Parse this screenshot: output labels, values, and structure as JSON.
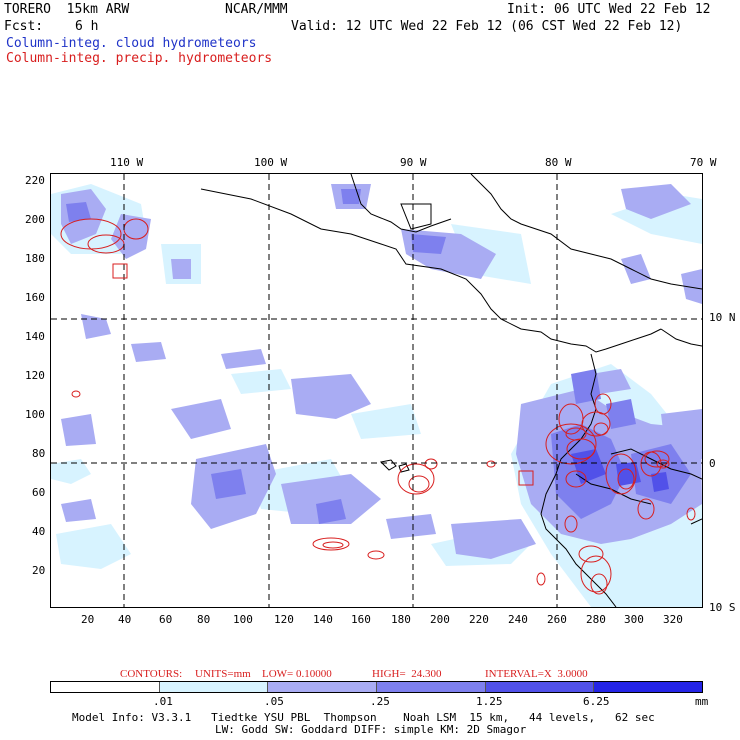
{
  "header": {
    "model_name": "TORERO  15km ARW",
    "org": "NCAR/MMM",
    "init": "Init: 06 UTC Wed 22 Feb 12",
    "fcst_label": "Fcst:",
    "fcst_value": "6 h",
    "valid": "Valid: 12 UTC Wed 22 Feb 12 (06 CST Wed 22 Feb 12)",
    "field_blue": "Column-integ. cloud hydrometeors",
    "field_red": "Column-integ. precip. hydrometeors"
  },
  "map": {
    "top_lon_labels": [
      "110 W",
      "100 W",
      "90 W",
      "80 W",
      "70 W"
    ],
    "right_lat_labels": [
      "10 N",
      "0",
      "10 S"
    ],
    "y_ticks": [
      "220",
      "200",
      "180",
      "160",
      "140",
      "120",
      "100",
      "80",
      "60",
      "40",
      "20"
    ],
    "x_ticks": [
      "20",
      "40",
      "60",
      "80",
      "100",
      "120",
      "140",
      "160",
      "180",
      "200",
      "220",
      "240",
      "260",
      "280",
      "300",
      "320"
    ]
  },
  "contours": {
    "label": "CONTOURS:",
    "units": "UNITS=mm",
    "low": "LOW= 0.10000",
    "high": "HIGH=  24.300",
    "interval": "INTERVAL=X  3.0000"
  },
  "legend": {
    "colors": [
      "#ffffff",
      "#d7f3ff",
      "#a9acf3",
      "#7e80ee",
      "#5151e9",
      "#2424e6"
    ],
    "labels": [
      ".01",
      ".05",
      ".25",
      "1.25",
      "6.25"
    ],
    "unit": "mm"
  },
  "footer": {
    "line1": "Model Info: V3.3.1   Tiedtke YSU PBL  Thompson    Noah LSM  15 km,   44 levels,   62 sec",
    "line2": "LW: Godd SW: Goddard DIFF: simple KM: 2D Smagor"
  }
}
